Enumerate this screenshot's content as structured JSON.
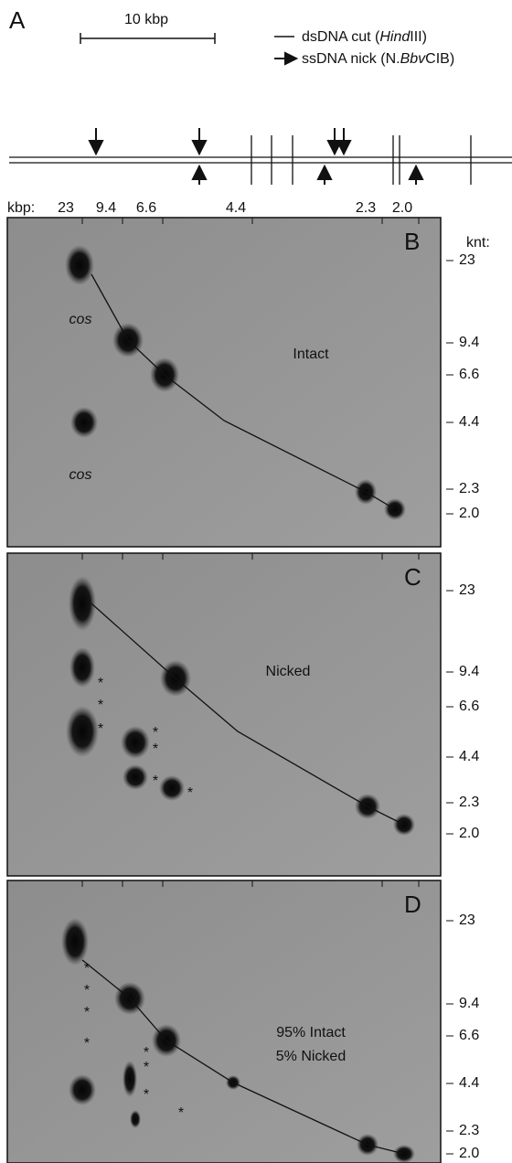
{
  "panel_a": {
    "label": "A",
    "scale_bar": "10 kbp",
    "legend": [
      [
        "dsDNA cut (",
        "Hind",
        "III)"
      ],
      [
        "ssDNA nick (N.",
        "Bbv",
        "CIB)"
      ]
    ]
  },
  "kbp_axis": {
    "label": "kbp:",
    "ticks": [
      "23",
      "9.4",
      "6.6",
      "4.4",
      "2.3",
      "2.0"
    ]
  },
  "knt_axis": {
    "label": "knt:",
    "ticks": [
      "23",
      "9.4",
      "6.6",
      "4.4",
      "2.3",
      "2.0"
    ]
  },
  "panels": [
    {
      "letter": "B",
      "text": [
        "Intact"
      ],
      "annotations": [
        "cos",
        "cos"
      ],
      "markers": []
    },
    {
      "letter": "C",
      "text": [
        "Nicked"
      ],
      "annotations": [],
      "markers": [
        "*",
        "*",
        "*",
        "*",
        "*",
        "*",
        "*"
      ]
    },
    {
      "letter": "D",
      "text": [
        "95% Intact",
        "5% Nicked"
      ],
      "annotations": [],
      "markers": [
        "*",
        "*",
        "*",
        "*",
        "*",
        "*",
        "*",
        "*"
      ]
    }
  ]
}
